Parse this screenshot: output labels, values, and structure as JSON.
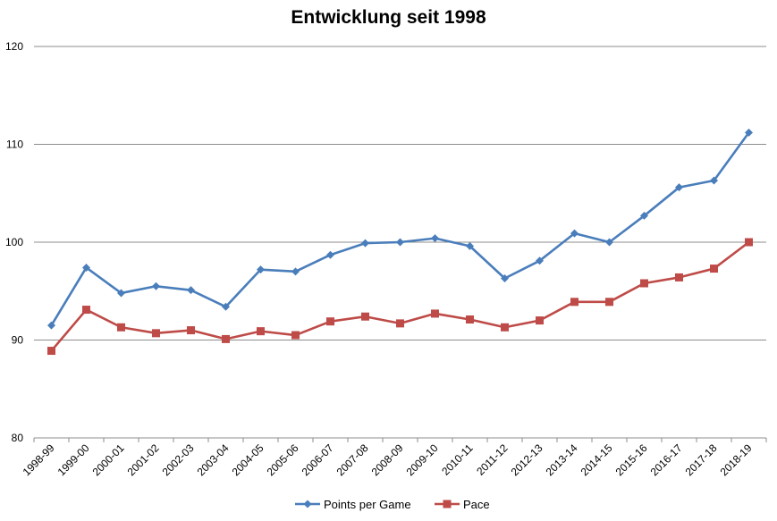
{
  "chart_data": {
    "type": "line",
    "title": "Entwicklung seit 1998",
    "categories": [
      "1998-99",
      "1999-00",
      "2000-01",
      "2001-02",
      "2002-03",
      "2003-04",
      "2004-05",
      "2005-06",
      "2006-07",
      "2007-08",
      "2008-09",
      "2009-10",
      "2010-11",
      "2011-12",
      "2012-13",
      "2013-14",
      "2014-15",
      "2015-16",
      "2016-17",
      "2017-18",
      "2018-19"
    ],
    "series": [
      {
        "name": "Points per Game",
        "color": "#4a7ebb",
        "marker": "diamond",
        "values": [
          91.5,
          97.4,
          94.8,
          95.5,
          95.1,
          93.4,
          97.2,
          97.0,
          98.7,
          99.9,
          100.0,
          100.4,
          99.6,
          96.3,
          98.1,
          100.9,
          100.0,
          102.7,
          105.6,
          106.3,
          111.2
        ]
      },
      {
        "name": "Pace",
        "color": "#be4b48",
        "marker": "square",
        "values": [
          88.9,
          93.1,
          91.3,
          90.7,
          91.0,
          90.1,
          90.9,
          90.5,
          91.9,
          92.4,
          91.7,
          92.7,
          92.1,
          91.3,
          92.0,
          93.9,
          93.9,
          95.8,
          96.4,
          97.3,
          100.0
        ]
      }
    ],
    "ylim": [
      80,
      120
    ],
    "yticks": [
      "80",
      "90",
      "100",
      "110",
      "120"
    ],
    "xlabel": "",
    "ylabel": "",
    "grid": "horizontal",
    "legend": "bottom"
  }
}
